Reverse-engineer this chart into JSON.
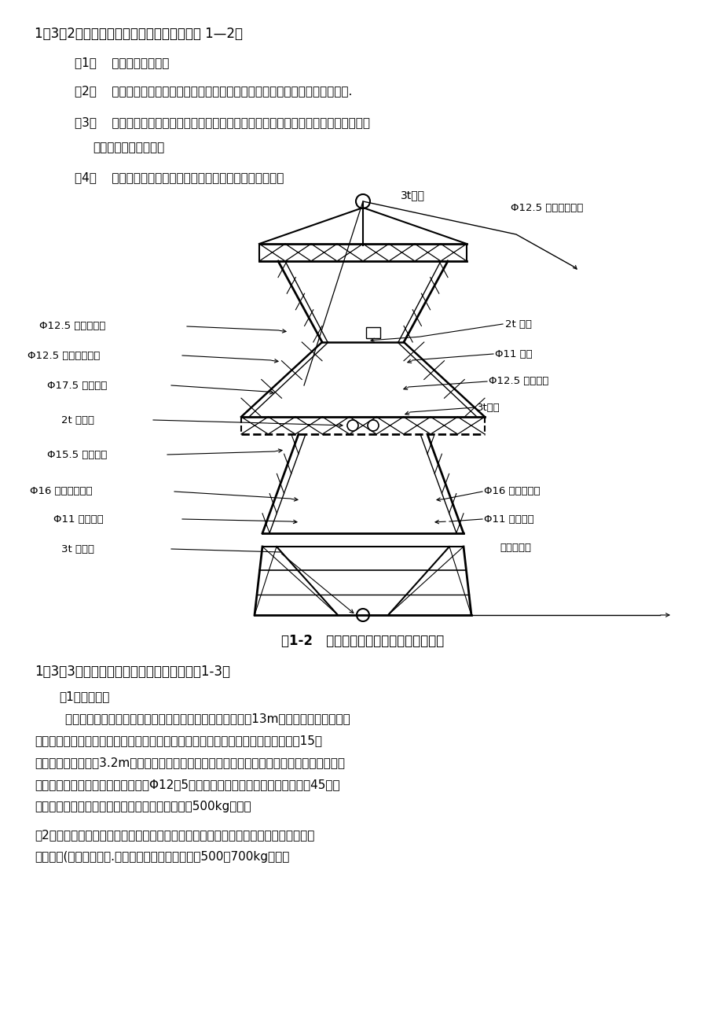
{
  "bg_color": "#ffffff",
  "heading1": "1。3。2直线铁塔横担及地线支架拆除（见图 1—2）",
  "item1": "（1）    拆除导线边横担。",
  "item2": "（2）    拆除地线支架，可通过适当升高抱杆并向需拆除侧倾斜一定角度后整体拆除.",
  "item3a": "（3）    调直抱杆使之直立于铁塔结构中心。对于内拆线悬浮抱杆起吁，抱杆前后尺需各打",
  "item3b": "一落地拆线加以稳定。",
  "item4": "（4）    分前、后两侧分别拆除中横担及其与上曲臂连接部分。",
  "fig_caption": "图1-2   直线铁塔横担中段吹拆现场布置图",
  "heading2": "1。3。3直线铁塔头部上曲臂拆除方法（见图1-3）",
  "sub1": "（1）抱杆布置",
  "para1_1": "        拆除前把抱杆全部伸出瓶口，使抱杆露出塔身瓶口的长度为13m，承托绳固定于塔颈下",
  "para1_2": "曲臂中部节点处，抱杆上拆线固定于下曲臂顶端，抱杆向将要起吁构件侧的倾角小于15度",
  "para1_3": "（即抱杆倾斜不超过3.2m）。对于内拆线悬浮抱杆拆除，由于抱杆顺线路方向稳定性较差，抱",
  "para1_4": "杆前后需各打一落地拆线，拆线采用Φ12。5錢丝绳，三联桩锁固，对地夹角不大于45度。",
  "para1_5": "在受地形影响无法打落地拆线时，吹拆总量控制在500kg以内。",
  "para2_1": "（2）启动机动绞磨，使牵引绳受力，拆除连接螺栓，松下牵引绳拆除曲臂。吹拆过程中",
  "para2_2": "用控制绳(攀根绳）控制.每次吹拆曲臂的重量控制在500～700kg以内。"
}
